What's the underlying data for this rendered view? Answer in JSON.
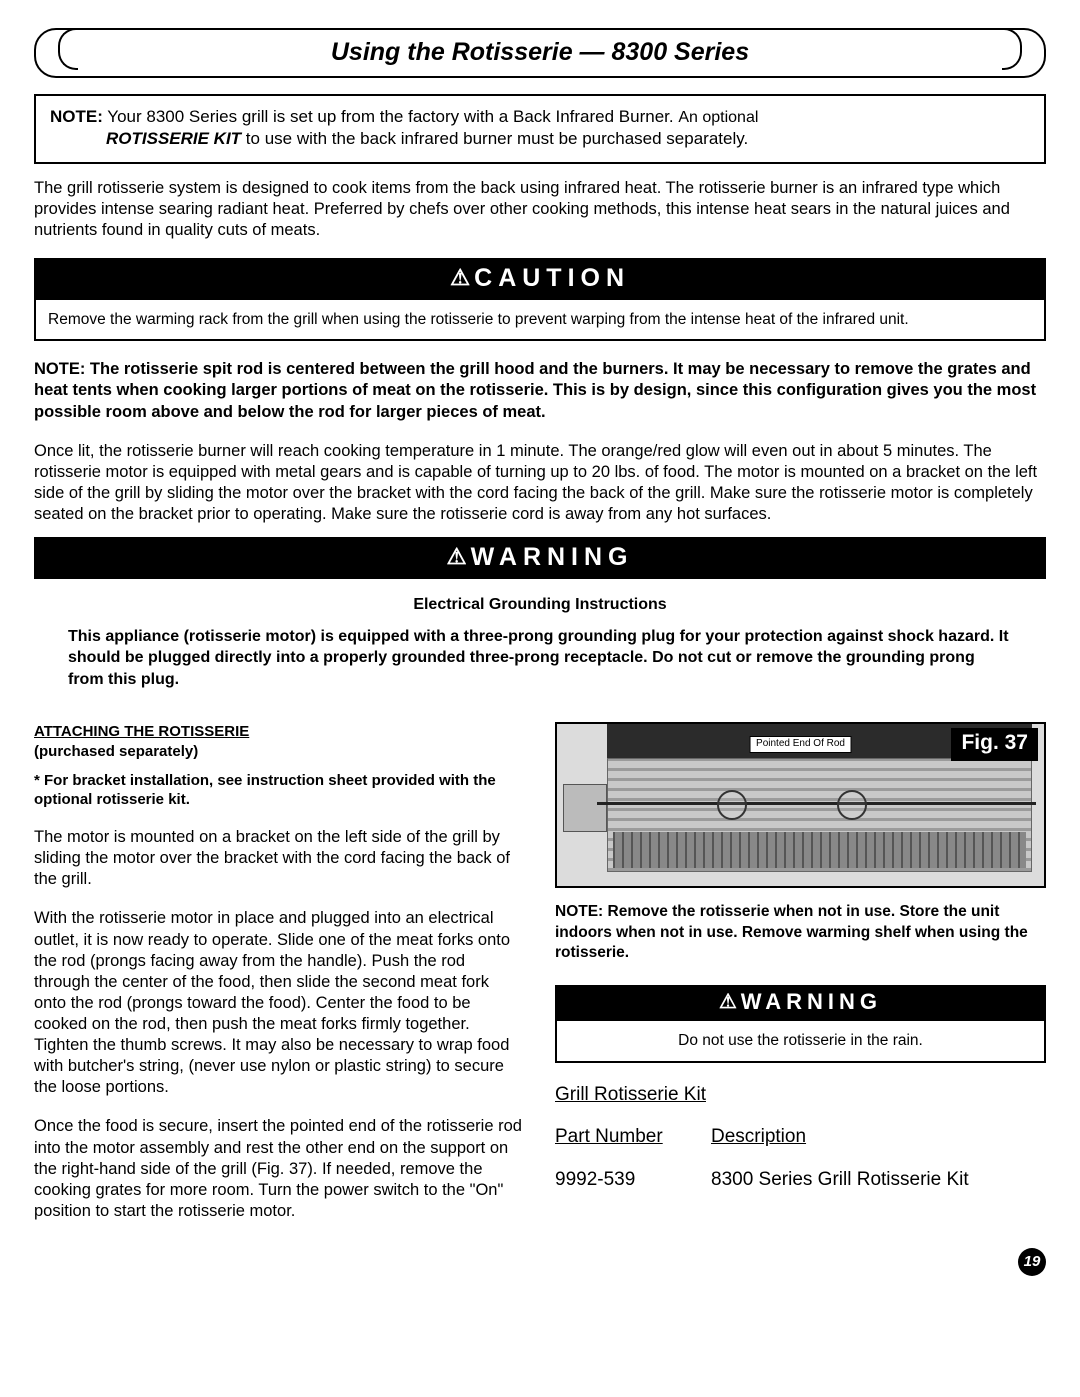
{
  "title": "Using the Rotisserie — 8300 Series",
  "note_box": {
    "lead": "NOTE:",
    "l1_rest": " Your 8300 Series grill is set up from the factory with a Back Infrared Burner.  ",
    "l1_tail": "An optional",
    "kit_bold": "ROTISSERIE KIT",
    "l2_rest": " to use with the back infrared burner must be purchased separately."
  },
  "intro": "The grill rotisserie system is designed to cook items from the back using infrared heat. The rotisserie burner is an infrared type which provides intense searing radiant heat. Preferred by chefs over other cooking methods, this intense heat sears in the natural juices and nutrients found in quality cuts of meats.",
  "banner_caution": "CAUTION",
  "caution_text": "Remove the warming rack from the grill when using the rotisserie to prevent warping from the intense heat of the infrared unit.",
  "bold_note": "NOTE: The rotisserie spit rod is centered between the grill hood and the burners. It may be necessary to remove the grates and heat tents when cooking larger portions of meat on the rotisserie. This is by design, since this configuration gives you the most possible room above and below the rod for larger pieces of meat.",
  "once_lit": "Once lit, the rotisserie burner will reach cooking temperature in 1 minute. The orange/red glow will even out in about 5 minutes. The rotisserie motor is equipped with metal gears and is capable of turning up to 20 lbs. of food. The motor is mounted on a bracket on the left side of the grill by sliding the motor over the bracket with the cord facing the back of the grill. Make sure the rotisserie motor is completely seated on the bracket prior to operating. Make sure the rotisserie cord is away from any hot surfaces.",
  "banner_warning": "WARNING",
  "eg_title": "Electrical Grounding Instructions",
  "eg_body": "This appliance (rotisserie motor) is equipped with a three-prong grounding plug for your protection against shock hazard.  It should be plugged directly into a properly grounded three-prong receptacle.  Do not cut or remove the grounding prong from this plug.",
  "left": {
    "att_u": "ATTACHING THE ROTISSERIE",
    "att_sep": "(purchased separately)",
    "bracket": "* For bracket installation, see instruction sheet provided with the optional rotisserie kit.",
    "p1": "The motor is mounted on a bracket on the left side of the grill by sliding the motor over the bracket with the cord facing the back of the grill.",
    "p2": "With the rotisserie motor in place and plugged into an electrical outlet, it is now ready to operate. Slide one of the meat forks onto the rod (prongs facing away from the handle). Push the rod through the center of the food, then slide the second meat fork onto the rod (prongs toward the food). Center the food to be cooked on the rod, then push the meat forks firmly together. Tighten the thumb screws. It may also be necessary to wrap food with butcher's string, (never use nylon or plastic string) to secure the loose portions.",
    "p3": "Once the food is secure, insert the pointed end of the rotisserie rod into the motor assembly and rest the other end on the support on the right-hand side of the grill (Fig. 37).  If needed, remove the cooking grates for more room. Turn the power switch to the \"On\" position to start the rotisserie motor."
  },
  "right": {
    "fig_label": "Fig. 37",
    "fig_callout": "Pointed End Of Rod",
    "rnote": "NOTE: Remove the rotisserie when not in use. Store the unit indoors when not in use. Remove warming shelf when using the rotisserie.",
    "rain": "Do not use the rotisserie in the rain.",
    "kit_head": "Grill Rotisserie Kit",
    "col_part": "Part Number",
    "col_desc": "Description",
    "row_part": "9992-539",
    "row_desc": "8300 Series Grill Rotisserie Kit"
  },
  "page": "19"
}
